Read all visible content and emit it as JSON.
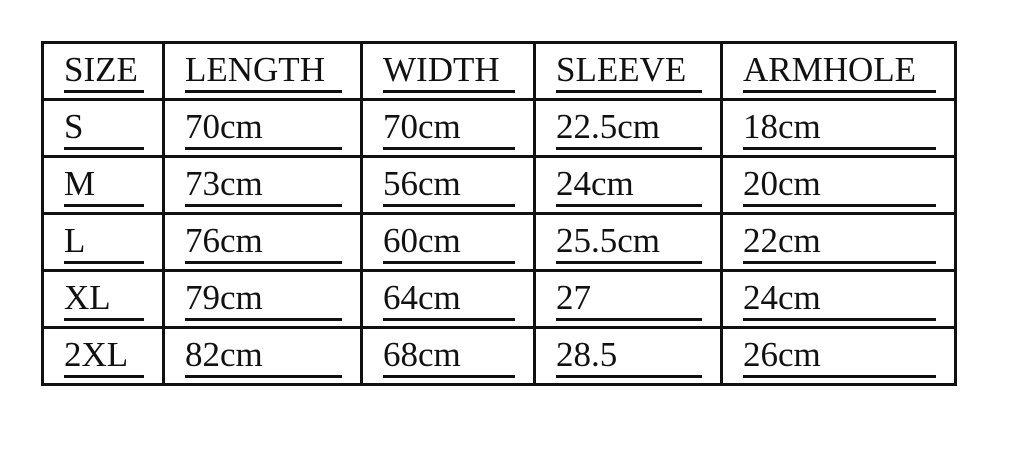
{
  "table": {
    "headers": [
      "SIZE",
      "LENGTH",
      "WIDTH",
      "SLEEVE",
      "ARMHOLE"
    ],
    "rows": [
      [
        "S",
        "70cm",
        "70cm",
        "22.5cm",
        "18cm"
      ],
      [
        "M",
        "73cm",
        "56cm",
        "24cm",
        "20cm"
      ],
      [
        "L",
        "76cm",
        "60cm",
        "25.5cm",
        "22cm"
      ],
      [
        "XL",
        "79cm",
        "64cm",
        "27",
        "24cm"
      ],
      [
        "2XL",
        "82cm",
        "68cm",
        "28.5",
        "26cm"
      ]
    ]
  }
}
